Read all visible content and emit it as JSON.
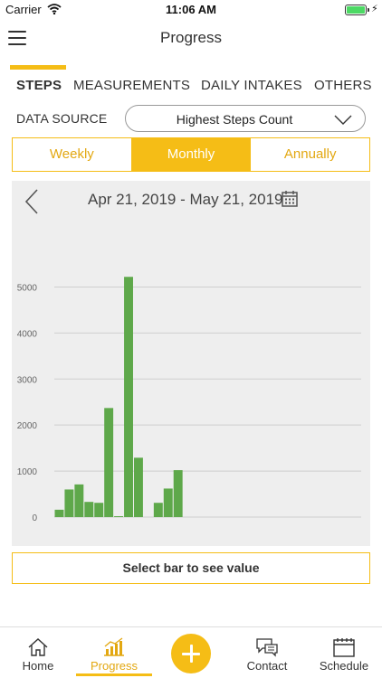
{
  "status_bar": {
    "carrier": "Carrier",
    "time": "11:06 AM"
  },
  "header": {
    "title": "Progress"
  },
  "tabs": [
    {
      "label": "STEPS",
      "active": true
    },
    {
      "label": "MEASUREMENTS",
      "active": false
    },
    {
      "label": "DAILY INTAKES",
      "active": false
    },
    {
      "label": "OTHERS",
      "active": false
    }
  ],
  "data_source": {
    "label": "DATA SOURCE",
    "value": "Highest Steps Count"
  },
  "period": {
    "options": [
      "Weekly",
      "Monthly",
      "Annually"
    ],
    "selected": "Monthly"
  },
  "chart_header": {
    "date_range": "Apr 21, 2019 - May 21, 2019"
  },
  "chart_data": {
    "type": "bar",
    "ylim": [
      0,
      5500
    ],
    "y_ticks": [
      0,
      1000,
      2000,
      3000,
      4000,
      5000
    ],
    "grid": true,
    "bar_color": "#5ea84a",
    "values": [
      160,
      600,
      710,
      330,
      310,
      2370,
      10,
      5220,
      1290,
      0,
      310,
      620,
      1020,
      0,
      0,
      0,
      0,
      0,
      0,
      0,
      0,
      0,
      0,
      0,
      0,
      0,
      0,
      0,
      0,
      0,
      0
    ]
  },
  "select_bar_hint": "Select bar to see value",
  "bottom_nav": {
    "items": [
      {
        "label": "Home",
        "icon": "home-icon"
      },
      {
        "label": "Progress",
        "icon": "progress-chart-icon",
        "active": true
      },
      {
        "label": "Contact",
        "icon": "chat-bubbles-icon"
      },
      {
        "label": "Schedule",
        "icon": "calendar-icon"
      }
    ],
    "add_icon": "plus-icon"
  },
  "colors": {
    "accent": "#f5bd16",
    "bar": "#5ea84a",
    "battery": "#4cd964"
  }
}
